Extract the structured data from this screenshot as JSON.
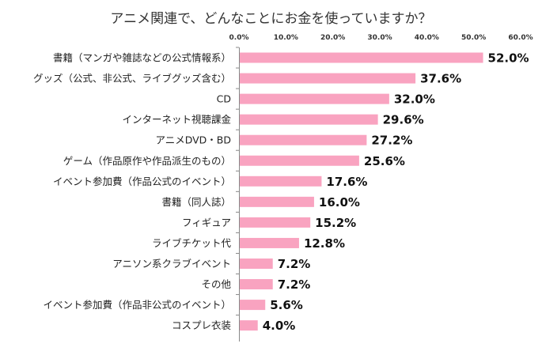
{
  "chart_data": {
    "type": "bar",
    "orientation": "horizontal",
    "title": "アニメ関連で、どんなことにお金を使っていますか？",
    "xlabel": "",
    "ylabel": "",
    "xlim": [
      0,
      60
    ],
    "x_ticks": [
      "0.0%",
      "10.0%",
      "20.0%",
      "30.0%",
      "40.0%",
      "50.0%",
      "60.0%"
    ],
    "grid": false,
    "legend": "none",
    "bar_color": "#f9a3c0",
    "categories": [
      "書籍（マンガや雑誌などの公式情報系）",
      "グッズ（公式、非公式、ライブグッズ含む）",
      "CD",
      "インターネット視聴課金",
      "アニメDVD・BD",
      "ゲーム（作品原作や作品派生のもの）",
      "イベント参加費（作品公式のイベント）",
      "書籍（同人誌）",
      "フィギュア",
      "ライブチケット代",
      "アニソン系クラブイベント",
      "その他",
      "イベント参加費（作品非公式のイベント）",
      "コスプレ衣装"
    ],
    "values": [
      52.0,
      37.6,
      32.0,
      29.6,
      27.2,
      25.6,
      17.6,
      16.0,
      15.2,
      12.8,
      7.2,
      7.2,
      5.6,
      4.0
    ],
    "value_labels": [
      "52.0%",
      "37.6%",
      "32.0%",
      "29.6%",
      "27.2%",
      "25.6%",
      "17.6%",
      "16.0%",
      "15.2%",
      "12.8%",
      "7.2%",
      "7.2%",
      "5.6%",
      "4.0%"
    ]
  }
}
